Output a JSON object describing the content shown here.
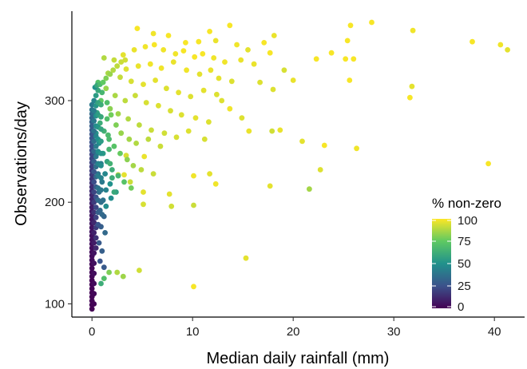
{
  "chart_data": {
    "type": "scatter",
    "title": "",
    "xlabel": "Median daily rainfall (mm)",
    "ylabel": "Observations/day",
    "xlim": [
      -2,
      43
    ],
    "ylim": [
      87,
      388
    ],
    "x_ticks": [
      0,
      10,
      20,
      30,
      40
    ],
    "y_ticks": [
      100,
      200,
      300
    ],
    "grid": false,
    "legend": {
      "title": "% non-zero",
      "placement": "right-bottom",
      "range": [
        0,
        100
      ],
      "ticks": [
        0,
        25,
        50,
        75,
        100
      ],
      "colormap": "viridis",
      "colors": [
        "#440154",
        "#3b528b",
        "#21918c",
        "#5ec962",
        "#fde725"
      ]
    },
    "notes": "Points as [median rainfall mm, observations/day, % non-zero]",
    "points": [
      [
        4.5,
        371,
        99
      ],
      [
        6.1,
        366,
        98
      ],
      [
        7.6,
        364,
        99
      ],
      [
        9.3,
        357,
        99
      ],
      [
        10.6,
        358,
        99
      ],
      [
        11.7,
        368,
        99
      ],
      [
        12.3,
        359,
        97
      ],
      [
        13.7,
        374,
        99
      ],
      [
        14.4,
        355,
        98
      ],
      [
        15.5,
        350,
        96
      ],
      [
        17.1,
        357,
        99
      ],
      [
        17.7,
        347,
        99
      ],
      [
        18.1,
        364,
        97
      ],
      [
        22.3,
        341,
        99
      ],
      [
        23.8,
        347,
        99
      ],
      [
        25.7,
        374,
        99
      ],
      [
        25.4,
        359,
        99
      ],
      [
        25.2,
        341,
        99
      ],
      [
        26.0,
        341,
        99
      ],
      [
        25.6,
        320,
        99
      ],
      [
        27.8,
        377,
        99
      ],
      [
        31.9,
        369,
        98
      ],
      [
        31.6,
        303,
        99
      ],
      [
        31.8,
        314,
        96
      ],
      [
        37.8,
        358,
        99
      ],
      [
        40.6,
        355,
        98
      ],
      [
        41.3,
        350,
        96
      ],
      [
        39.4,
        238,
        99
      ],
      [
        15.3,
        145,
        96
      ],
      [
        10.1,
        117,
        99
      ],
      [
        4.7,
        133,
        93
      ],
      [
        2.5,
        131,
        88
      ],
      [
        1.7,
        131,
        80
      ],
      [
        3.1,
        127,
        85
      ],
      [
        1.2,
        125,
        70
      ],
      [
        0.9,
        120,
        62
      ],
      [
        20.9,
        260,
        96
      ],
      [
        23.1,
        256,
        99
      ],
      [
        26.3,
        253,
        98
      ],
      [
        22.7,
        232,
        95
      ],
      [
        21.6,
        213,
        86
      ],
      [
        17.7,
        216,
        96
      ],
      [
        12.3,
        218,
        98
      ],
      [
        11.7,
        228,
        96
      ],
      [
        10.1,
        226,
        98
      ],
      [
        10.1,
        197,
        92
      ],
      [
        7.9,
        196,
        93
      ],
      [
        5.2,
        245,
        97
      ],
      [
        3.4,
        246,
        94
      ],
      [
        3.2,
        227,
        96
      ],
      [
        2.6,
        227,
        90
      ],
      [
        3.8,
        220,
        92
      ],
      [
        5.1,
        210,
        96
      ],
      [
        5.1,
        198,
        94
      ],
      [
        7.7,
        208,
        96
      ],
      [
        12.9,
        300,
        95
      ],
      [
        13.7,
        292,
        98
      ],
      [
        14.9,
        283,
        95
      ],
      [
        15.6,
        270,
        97
      ],
      [
        17.9,
        270,
        93
      ],
      [
        18.7,
        271,
        97
      ],
      [
        16.7,
        318,
        95
      ],
      [
        19.1,
        330,
        94
      ],
      [
        20.0,
        320,
        97
      ],
      [
        18.0,
        311,
        95
      ],
      [
        1.2,
        342,
        88
      ],
      [
        2.2,
        340,
        91
      ],
      [
        3.1,
        345,
        96
      ],
      [
        4.2,
        350,
        97
      ],
      [
        5.3,
        353,
        98
      ],
      [
        6.2,
        355,
        99
      ],
      [
        7.1,
        350,
        98
      ],
      [
        8.3,
        346,
        98
      ],
      [
        9.1,
        349,
        99
      ],
      [
        10.2,
        343,
        99
      ],
      [
        11.0,
        346,
        99
      ],
      [
        12.1,
        342,
        98
      ],
      [
        13.2,
        338,
        98
      ],
      [
        14.8,
        340,
        97
      ],
      [
        16.1,
        336,
        97
      ],
      [
        3.4,
        331,
        95
      ],
      [
        4.6,
        334,
        97
      ],
      [
        5.8,
        336,
        98
      ],
      [
        6.9,
        332,
        98
      ],
      [
        8.1,
        338,
        97
      ],
      [
        9.4,
        330,
        98
      ],
      [
        10.7,
        326,
        96
      ],
      [
        11.8,
        330,
        97
      ],
      [
        12.6,
        322,
        96
      ],
      [
        13.9,
        319,
        95
      ],
      [
        1.6,
        327,
        87
      ],
      [
        2.8,
        323,
        91
      ],
      [
        3.9,
        319,
        94
      ],
      [
        5.1,
        316,
        96
      ],
      [
        6.3,
        320,
        96
      ],
      [
        7.4,
        312,
        95
      ],
      [
        8.6,
        308,
        96
      ],
      [
        9.8,
        304,
        95
      ],
      [
        11.1,
        310,
        96
      ],
      [
        12.4,
        306,
        95
      ],
      [
        1.4,
        312,
        84
      ],
      [
        2.3,
        305,
        87
      ],
      [
        3.3,
        300,
        90
      ],
      [
        4.3,
        305,
        92
      ],
      [
        5.4,
        298,
        94
      ],
      [
        6.6,
        295,
        95
      ],
      [
        7.8,
        290,
        94
      ],
      [
        8.9,
        286,
        95
      ],
      [
        10.3,
        283,
        96
      ],
      [
        11.6,
        279,
        95
      ],
      [
        0.9,
        300,
        75
      ],
      [
        1.8,
        292,
        82
      ],
      [
        2.6,
        287,
        85
      ],
      [
        3.6,
        282,
        88
      ],
      [
        4.7,
        276,
        90
      ],
      [
        5.9,
        271,
        92
      ],
      [
        7.2,
        268,
        93
      ],
      [
        8.4,
        264,
        94
      ],
      [
        9.6,
        270,
        95
      ],
      [
        11.2,
        262,
        94
      ],
      [
        0.6,
        318,
        72
      ],
      [
        1.0,
        308,
        66
      ],
      [
        1.5,
        298,
        70
      ],
      [
        1.9,
        286,
        78
      ],
      [
        2.4,
        276,
        80
      ],
      [
        2.9,
        268,
        84
      ],
      [
        3.7,
        262,
        86
      ],
      [
        4.4,
        258,
        88
      ],
      [
        5.6,
        262,
        90
      ],
      [
        6.8,
        255,
        92
      ],
      [
        0.5,
        288,
        58
      ],
      [
        0.8,
        278,
        62
      ],
      [
        1.2,
        270,
        64
      ],
      [
        1.7,
        262,
        68
      ],
      [
        2.2,
        255,
        72
      ],
      [
        2.8,
        248,
        76
      ],
      [
        3.5,
        242,
        82
      ],
      [
        4.1,
        236,
        86
      ],
      [
        4.9,
        232,
        90
      ],
      [
        6.1,
        228,
        92
      ],
      [
        0.4,
        268,
        52
      ],
      [
        0.7,
        258,
        50
      ],
      [
        1.1,
        248,
        54
      ],
      [
        1.5,
        240,
        58
      ],
      [
        2.0,
        232,
        62
      ],
      [
        2.6,
        226,
        66
      ],
      [
        3.2,
        220,
        72
      ],
      [
        3.9,
        214,
        78
      ],
      [
        0.5,
        248,
        46
      ],
      [
        0.9,
        238,
        42
      ],
      [
        1.3,
        228,
        46
      ],
      [
        1.8,
        218,
        50
      ],
      [
        2.4,
        210,
        56
      ],
      [
        0.6,
        228,
        38
      ],
      [
        1.0,
        220,
        40
      ],
      [
        1.4,
        212,
        44
      ],
      [
        1.9,
        204,
        48
      ],
      [
        0.7,
        210,
        36
      ],
      [
        1.1,
        202,
        38
      ],
      [
        0.8,
        192,
        34
      ],
      [
        1.2,
        186,
        32
      ],
      [
        0.9,
        176,
        30
      ],
      [
        1.3,
        170,
        34
      ],
      [
        0.7,
        160,
        28
      ],
      [
        1.0,
        152,
        30
      ],
      [
        0.8,
        142,
        26
      ],
      [
        1.2,
        136,
        28
      ],
      [
        0.0,
        296,
        40
      ],
      [
        0.0,
        291,
        38
      ],
      [
        0.0,
        287,
        35
      ],
      [
        0.0,
        283,
        33
      ],
      [
        0.0,
        279,
        31
      ],
      [
        0.0,
        275,
        30
      ],
      [
        0.0,
        271,
        28
      ],
      [
        0.0,
        267,
        27
      ],
      [
        0.0,
        263,
        26
      ],
      [
        0.0,
        259,
        25
      ],
      [
        0.0,
        255,
        24
      ],
      [
        0.0,
        251,
        23
      ],
      [
        0.0,
        247,
        22
      ],
      [
        0.0,
        243,
        21
      ],
      [
        0.0,
        239,
        20
      ],
      [
        0.0,
        235,
        19
      ],
      [
        0.0,
        231,
        18
      ],
      [
        0.0,
        227,
        17
      ],
      [
        0.0,
        223,
        16
      ],
      [
        0.0,
        219,
        15
      ],
      [
        0.0,
        215,
        14
      ],
      [
        0.0,
        211,
        13
      ],
      [
        0.0,
        207,
        12
      ],
      [
        0.0,
        203,
        11
      ],
      [
        0.0,
        199,
        10
      ],
      [
        0.0,
        195,
        9
      ],
      [
        0.0,
        191,
        8
      ],
      [
        0.0,
        187,
        8
      ],
      [
        0.0,
        183,
        7
      ],
      [
        0.0,
        179,
        7
      ],
      [
        0.0,
        175,
        6
      ],
      [
        0.0,
        171,
        6
      ],
      [
        0.0,
        167,
        5
      ],
      [
        0.0,
        163,
        5
      ],
      [
        0.0,
        159,
        4
      ],
      [
        0.0,
        155,
        4
      ],
      [
        0.0,
        151,
        3
      ],
      [
        0.0,
        147,
        3
      ],
      [
        0.0,
        143,
        3
      ],
      [
        0.0,
        139,
        2
      ],
      [
        0.0,
        135,
        2
      ],
      [
        0.0,
        131,
        2
      ],
      [
        0.0,
        127,
        2
      ],
      [
        0.0,
        123,
        1
      ],
      [
        0.0,
        119,
        1
      ],
      [
        0.0,
        115,
        1
      ],
      [
        0.0,
        111,
        1
      ],
      [
        0.0,
        107,
        1
      ],
      [
        0.0,
        103,
        1
      ],
      [
        0.0,
        99,
        1
      ],
      [
        0.0,
        95,
        0
      ],
      [
        0.2,
        300,
        45
      ],
      [
        0.2,
        290,
        42
      ],
      [
        0.2,
        280,
        40
      ],
      [
        0.2,
        270,
        38
      ],
      [
        0.2,
        260,
        36
      ],
      [
        0.2,
        250,
        34
      ],
      [
        0.2,
        240,
        30
      ],
      [
        0.2,
        230,
        27
      ],
      [
        0.2,
        220,
        24
      ],
      [
        0.2,
        210,
        21
      ],
      [
        0.2,
        200,
        18
      ],
      [
        0.2,
        190,
        15
      ],
      [
        0.2,
        180,
        12
      ],
      [
        0.2,
        170,
        10
      ],
      [
        0.2,
        160,
        8
      ],
      [
        0.2,
        150,
        6
      ],
      [
        0.2,
        140,
        5
      ],
      [
        0.2,
        130,
        4
      ],
      [
        0.2,
        120,
        3
      ],
      [
        0.2,
        110,
        2
      ],
      [
        0.2,
        100,
        1
      ],
      [
        0.4,
        305,
        55
      ],
      [
        0.4,
        295,
        52
      ],
      [
        0.4,
        285,
        50
      ],
      [
        0.4,
        275,
        48
      ],
      [
        0.4,
        265,
        45
      ],
      [
        0.4,
        255,
        42
      ],
      [
        0.4,
        245,
        40
      ],
      [
        0.4,
        235,
        36
      ],
      [
        0.4,
        225,
        32
      ],
      [
        0.4,
        215,
        28
      ],
      [
        0.4,
        205,
        25
      ],
      [
        0.4,
        195,
        22
      ],
      [
        0.4,
        185,
        20
      ],
      [
        0.4,
        175,
        18
      ],
      [
        0.4,
        165,
        15
      ],
      [
        0.4,
        155,
        12
      ],
      [
        0.6,
        310,
        60
      ],
      [
        0.6,
        298,
        58
      ],
      [
        0.6,
        286,
        55
      ],
      [
        0.6,
        274,
        52
      ],
      [
        0.6,
        262,
        50
      ],
      [
        0.6,
        250,
        48
      ],
      [
        0.6,
        238,
        45
      ],
      [
        0.6,
        226,
        42
      ],
      [
        0.6,
        214,
        38
      ],
      [
        0.6,
        202,
        34
      ],
      [
        0.6,
        190,
        30
      ],
      [
        0.6,
        178,
        26
      ],
      [
        0.9,
        296,
        62
      ],
      [
        0.9,
        284,
        60
      ],
      [
        0.9,
        272,
        58
      ],
      [
        0.9,
        260,
        55
      ],
      [
        0.9,
        248,
        52
      ],
      [
        0.9,
        236,
        48
      ],
      [
        0.9,
        224,
        44
      ],
      [
        0.9,
        212,
        40
      ],
      [
        0.9,
        200,
        36
      ],
      [
        1.0,
        188,
        34
      ],
      [
        1.5,
        282,
        70
      ],
      [
        1.6,
        266,
        68
      ],
      [
        1.7,
        252,
        66
      ],
      [
        1.8,
        238,
        64
      ],
      [
        2.0,
        224,
        62
      ],
      [
        2.2,
        210,
        60
      ],
      [
        1.4,
        196,
        48
      ],
      [
        0.3,
        313,
        50
      ],
      [
        0.5,
        315,
        60
      ],
      [
        0.8,
        316,
        68
      ],
      [
        1.1,
        318,
        75
      ],
      [
        1.4,
        322,
        80
      ],
      [
        1.8,
        326,
        84
      ],
      [
        2.1,
        330,
        88
      ],
      [
        2.5,
        334,
        90
      ],
      [
        2.9,
        338,
        92
      ],
      [
        3.3,
        340,
        93
      ]
    ]
  }
}
